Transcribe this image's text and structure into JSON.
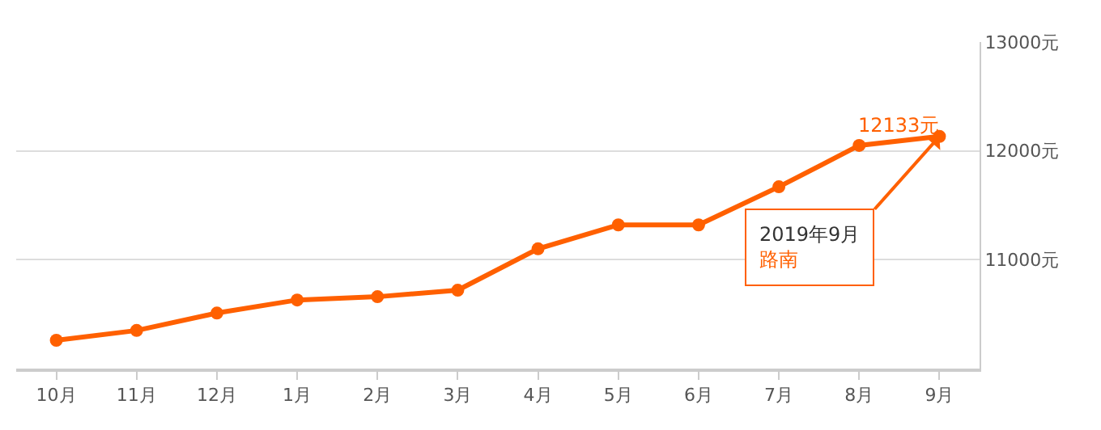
{
  "chart_data": {
    "type": "line",
    "categories": [
      "10月",
      "11月",
      "12月",
      "1月",
      "2月",
      "3月",
      "4月",
      "5月",
      "6月",
      "7月",
      "8月",
      "9月"
    ],
    "series": [
      {
        "name": "路南",
        "color": "#ff6000",
        "values": [
          10260,
          10350,
          10510,
          10630,
          10660,
          10720,
          11100,
          11320,
          11320,
          11670,
          12050,
          12133
        ],
        "value_labels": [
          null,
          null,
          null,
          null,
          null,
          null,
          null,
          null,
          null,
          null,
          null,
          "12133元"
        ]
      }
    ],
    "annotations": [
      {
        "text": "2019年9月",
        "x": "9月",
        "y": 12133
      }
    ],
    "ylim": [
      10000,
      13000
    ],
    "yticks": [
      {
        "value": 11000,
        "label": "11000元"
      },
      {
        "value": 12000,
        "label": "12000元"
      },
      {
        "value": 13000,
        "label": "13000元"
      }
    ],
    "grid": "y",
    "legend": false,
    "marker": "circle",
    "line_style": "solid"
  }
}
